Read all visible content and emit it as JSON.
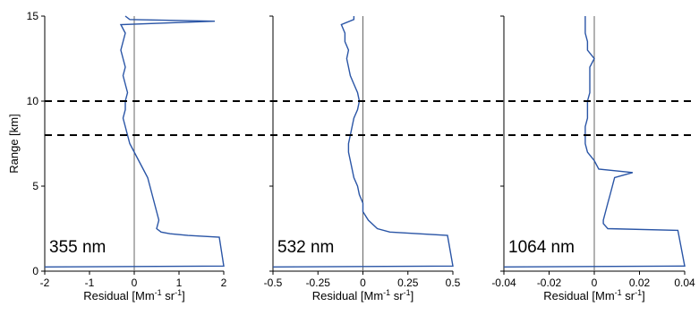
{
  "chart_data": [
    {
      "type": "line",
      "panel_label": "355 nm",
      "xlabel": "Residual [Mm",
      "xlabel_sup1": "-1",
      "xlabel_mid": " sr",
      "xlabel_sup2": "-1",
      "xlabel_end": "]",
      "ylabel": "Range [km]",
      "xlim": [
        -2,
        2
      ],
      "ylim": [
        0,
        15
      ],
      "xticks": [
        -2,
        -1,
        0,
        1,
        2
      ],
      "xtick_labels": [
        "-2",
        "-1",
        "0",
        "1",
        "2"
      ],
      "yticks": [
        0,
        5,
        10,
        15
      ],
      "ytick_labels": [
        "0",
        "5",
        "10",
        "15"
      ],
      "dashed_lines_km": [
        8,
        10
      ],
      "series": [
        {
          "color": "#2a55a6",
          "y": [
            0.25,
            0.3,
            0.3,
            2.0,
            2.1,
            2.2,
            2.3,
            2.5,
            3.0,
            3.5,
            4.0,
            4.5,
            5.0,
            5.5,
            6.0,
            6.5,
            7.0,
            7.5,
            8.0,
            8.5,
            9.0,
            9.5,
            10.0,
            10.5,
            11.0,
            11.5,
            12.0,
            12.5,
            13.0,
            13.5,
            14.0,
            14.5,
            14.7,
            14.8,
            15.0
          ],
          "x": [
            -2.0,
            2.0,
            2.0,
            1.9,
            1.2,
            0.8,
            0.6,
            0.5,
            0.55,
            0.5,
            0.45,
            0.4,
            0.35,
            0.3,
            0.2,
            0.1,
            0.0,
            -0.1,
            -0.15,
            -0.2,
            -0.25,
            -0.2,
            -0.2,
            -0.15,
            -0.2,
            -0.25,
            -0.2,
            -0.25,
            -0.3,
            -0.25,
            -0.2,
            -0.3,
            1.8,
            -0.1,
            -0.2
          ]
        }
      ]
    },
    {
      "type": "line",
      "panel_label": "532 nm",
      "xlabel": "Residual [Mm",
      "xlabel_sup1": "-1",
      "xlabel_mid": " sr",
      "xlabel_sup2": "-1",
      "xlabel_end": "]",
      "xlim": [
        -0.5,
        0.5
      ],
      "ylim": [
        0,
        15
      ],
      "xticks": [
        -0.5,
        -0.25,
        0,
        0.25,
        0.5
      ],
      "xtick_labels": [
        "-0.5",
        "-0.25",
        "0",
        "0.25",
        "0.5"
      ],
      "yticks": [
        0,
        5,
        10,
        15
      ],
      "dashed_lines_km": [
        8,
        10
      ],
      "series": [
        {
          "color": "#2a55a6",
          "y": [
            0.25,
            0.3,
            0.3,
            2.1,
            2.3,
            2.5,
            3.0,
            3.5,
            4.0,
            4.5,
            5.0,
            5.5,
            6.0,
            6.5,
            7.0,
            7.5,
            8.0,
            8.5,
            9.0,
            9.5,
            10.0,
            10.5,
            11.0,
            11.5,
            12.0,
            12.5,
            13.0,
            13.5,
            14.0,
            14.5,
            14.8,
            15.0
          ],
          "x": [
            -0.5,
            0.5,
            0.5,
            0.47,
            0.15,
            0.08,
            0.03,
            0.0,
            0.0,
            -0.02,
            -0.03,
            -0.05,
            -0.06,
            -0.07,
            -0.08,
            -0.08,
            -0.07,
            -0.06,
            -0.05,
            -0.03,
            -0.02,
            -0.03,
            -0.05,
            -0.07,
            -0.08,
            -0.09,
            -0.08,
            -0.1,
            -0.1,
            -0.12,
            -0.05,
            -0.05
          ]
        }
      ]
    },
    {
      "type": "line",
      "panel_label": "1064 nm",
      "xlabel": "Residual [Mm",
      "xlabel_sup1": "-1",
      "xlabel_mid": " sr",
      "xlabel_sup2": "-1",
      "xlabel_end": "]",
      "xlim": [
        -0.04,
        0.04
      ],
      "ylim": [
        0,
        15
      ],
      "xticks": [
        -0.04,
        -0.02,
        0,
        0.02,
        0.04
      ],
      "xtick_labels": [
        "-0.04",
        "-0.02",
        "0",
        "0.02",
        "0.04"
      ],
      "yticks": [
        0,
        5,
        10,
        15
      ],
      "dashed_lines_km": [
        8,
        10
      ],
      "series": [
        {
          "color": "#2a55a6",
          "y": [
            0.25,
            0.3,
            0.3,
            2.4,
            2.5,
            2.8,
            3.0,
            3.5,
            4.0,
            4.5,
            5.0,
            5.5,
            5.8,
            6.0,
            6.5,
            7.0,
            7.5,
            8.0,
            8.5,
            9.0,
            9.5,
            10.0,
            10.5,
            11.0,
            11.5,
            12.0,
            12.5,
            13.0,
            13.5,
            14.0,
            14.5,
            15.0
          ],
          "x": [
            -0.04,
            0.04,
            0.04,
            0.037,
            0.006,
            0.004,
            0.004,
            0.005,
            0.006,
            0.007,
            0.008,
            0.009,
            0.017,
            0.002,
            0.0,
            -0.003,
            -0.004,
            -0.004,
            -0.004,
            -0.003,
            -0.003,
            -0.003,
            -0.002,
            -0.002,
            -0.002,
            -0.002,
            0.0,
            -0.003,
            -0.003,
            -0.004,
            -0.004,
            -0.004
          ]
        }
      ]
    }
  ]
}
